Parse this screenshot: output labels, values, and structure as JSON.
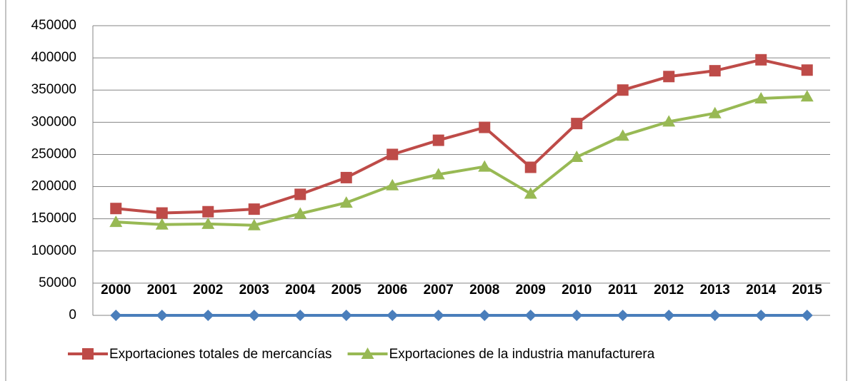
{
  "chart_data": {
    "type": "line",
    "categories": [
      "2000",
      "2001",
      "2002",
      "2003",
      "2004",
      "2005",
      "2006",
      "2007",
      "2008",
      "2009",
      "2010",
      "2011",
      "2012",
      "2013",
      "2014",
      "2015"
    ],
    "series": [
      {
        "color": "#4a7ebb",
        "marker": "diamond",
        "legend": false,
        "values": [
          0,
          0,
          0,
          0,
          0,
          0,
          0,
          0,
          0,
          0,
          0,
          0,
          0,
          0,
          0,
          0
        ]
      },
      {
        "name": "Exportaciones totales de mercancías",
        "color": "#be4b48",
        "marker": "square",
        "values": [
          166000,
          159000,
          161000,
          165000,
          188000,
          214000,
          250000,
          272000,
          292000,
          230000,
          298000,
          350000,
          371000,
          380000,
          397000,
          381000
        ]
      },
      {
        "name": "Exportaciones de la industria manufacturera",
        "color": "#98b954",
        "marker": "triangle",
        "values": [
          145000,
          141000,
          142000,
          140000,
          158000,
          175000,
          202000,
          219000,
          231000,
          189000,
          246000,
          279000,
          301000,
          314000,
          337000,
          340000
        ]
      }
    ],
    "ylim": [
      0,
      450000
    ],
    "yticks": [
      0,
      50000,
      100000,
      150000,
      200000,
      250000,
      300000,
      350000,
      400000,
      450000
    ],
    "grid": true,
    "legend_position": "bottom"
  }
}
